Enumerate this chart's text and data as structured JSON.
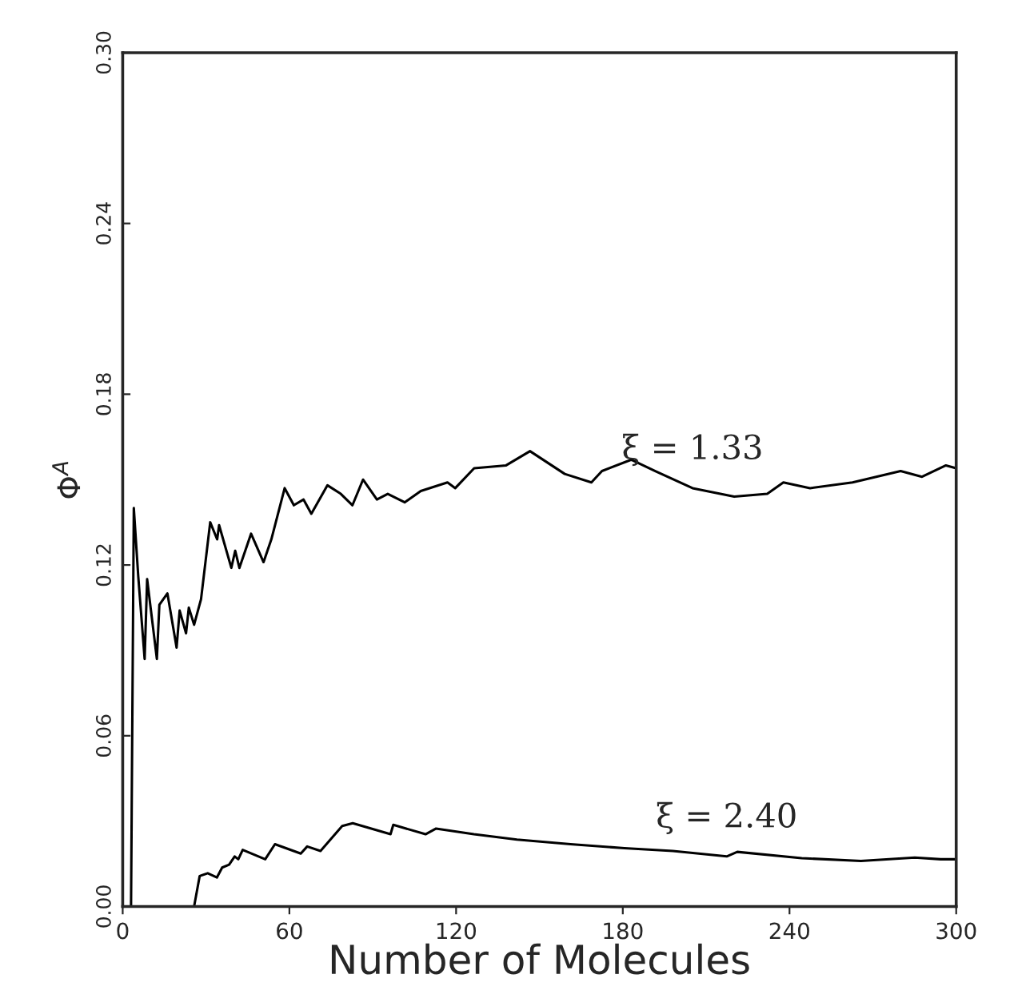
{
  "chart_data": {
    "type": "line",
    "xlabel": "Number of Molecules",
    "ylabel": "Φ$^{A}$",
    "series": [
      {
        "color": "#000000",
        "x": [
          3,
          4,
          5.6,
          7.9,
          8.8,
          12.3,
          13.2,
          16.1,
          19.4,
          20.5,
          22.8,
          23.8,
          25.7,
          28.2,
          31.5,
          34.0,
          34.7,
          39.1,
          40.5,
          42.0,
          46.2,
          50.7,
          53.5,
          58.3,
          61.6,
          65.1,
          67.9,
          73.7,
          78.5,
          82.7,
          86.5,
          91.5,
          95.4,
          101.5,
          107.3,
          116.9,
          119.7,
          126.5,
          138.0,
          146.6,
          159.1,
          168.7,
          172.5,
          183.1,
          191.7,
          205.1,
          220.1,
          232.0,
          237.8,
          247.4,
          262.7,
          280.0,
          287.7,
          296.3,
          300
        ],
        "values": [
          0,
          0.14,
          0.116,
          0.087,
          0.115,
          0.087,
          0.106,
          0.11,
          0.091,
          0.104,
          0.096,
          0.105,
          0.099,
          0.108,
          0.135,
          0.129,
          0.134,
          0.119,
          0.125,
          0.119,
          0.131,
          0.121,
          0.129,
          0.147,
          0.141,
          0.143,
          0.138,
          0.148,
          0.145,
          0.141,
          0.15,
          0.143,
          0.145,
          0.142,
          0.146,
          0.149,
          0.147,
          0.154,
          0.155,
          0.16,
          0.152,
          0.149,
          0.153,
          0.157,
          0.153,
          0.147,
          0.144,
          0.145,
          0.149,
          0.147,
          0.149,
          0.153,
          0.151,
          0.155,
          0.154
        ]
      },
      {
        "color": "#000000",
        "x": [
          0,
          25.7,
          27.7,
          30.6,
          33.9,
          35.8,
          38.3,
          40.3,
          41.6,
          43.2,
          51.3,
          54.8,
          64.1,
          66.4,
          71.2,
          79.0,
          82.8,
          96.4,
          97.4,
          109.0,
          112.8,
          126.4,
          141.9,
          161.2,
          180.6,
          198.0,
          217.4,
          221.2,
          244.4,
          265.7,
          285.1,
          294.4,
          300
        ],
        "values": [
          0,
          0,
          0.0107,
          0.0117,
          0.0102,
          0.0137,
          0.0147,
          0.0176,
          0.0166,
          0.0199,
          0.0166,
          0.0219,
          0.0186,
          0.0211,
          0.0195,
          0.0283,
          0.0293,
          0.0254,
          0.0287,
          0.0254,
          0.0274,
          0.0254,
          0.0235,
          0.0219,
          0.0205,
          0.0195,
          0.0176,
          0.0192,
          0.017,
          0.016,
          0.0172,
          0.0166,
          0.0166
        ]
      }
    ],
    "annotations": [
      "ξ = 1.33",
      "ξ = 2.40"
    ],
    "xlim": [
      0,
      300
    ],
    "xticks": [
      0,
      60,
      120,
      180,
      240,
      300
    ],
    "ylim": [
      0,
      0.3
    ],
    "yticks": [
      {
        "value": 0,
        "label": "0.00"
      },
      {
        "value": 0.06,
        "label": "0.06"
      },
      {
        "value": 0.12,
        "label": "0.12"
      },
      {
        "value": 0.18,
        "label": "0.18"
      },
      {
        "value": 0.24,
        "label": "0.24"
      },
      {
        "value": 0.3,
        "label": "0.30"
      }
    ],
    "grid": false,
    "legend": false,
    "marker": "none",
    "line_style": "solid"
  }
}
